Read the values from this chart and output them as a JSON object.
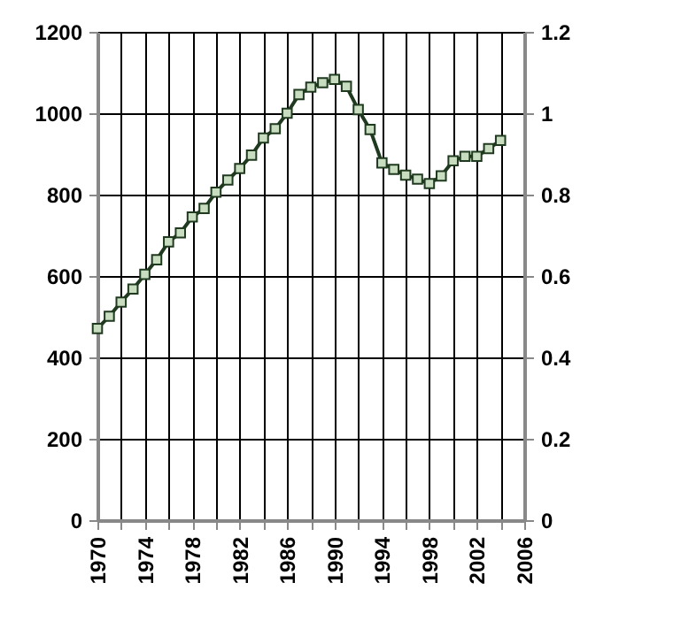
{
  "chart_data": {
    "type": "line",
    "x": [
      1970,
      1971,
      1972,
      1973,
      1974,
      1975,
      1976,
      1977,
      1978,
      1979,
      1980,
      1981,
      1982,
      1983,
      1984,
      1985,
      1986,
      1987,
      1988,
      1989,
      1990,
      1991,
      1992,
      1993,
      1994,
      1995,
      1996,
      1997,
      1998,
      1999,
      2000,
      2001,
      2002,
      2003,
      2004
    ],
    "series": [
      {
        "color": "#1f3a1f",
        "values": [
          471,
          501,
          536,
          568,
          604,
          640,
          684,
          706,
          745,
          766,
          806,
          836,
          864,
          897,
          939,
          962,
          1000,
          1046,
          1064,
          1075,
          1083,
          1066,
          1009,
          960,
          878,
          862,
          848,
          838,
          827,
          846,
          883,
          894,
          894,
          913,
          933
        ]
      }
    ],
    "xlim": [
      1970,
      2006
    ],
    "xticks": [
      1970,
      {
        "value": 1972,
        "label": null
      },
      1974,
      {
        "value": 1976,
        "label": null
      },
      1978,
      {
        "value": 1980,
        "label": null
      },
      1982,
      {
        "value": 1984,
        "label": null
      },
      1986,
      {
        "value": 1988,
        "label": null
      },
      1990,
      {
        "value": 1992,
        "label": null
      },
      1994,
      {
        "value": 1996,
        "label": null
      },
      1998,
      {
        "value": 2000,
        "label": null
      },
      2002,
      {
        "value": 2004,
        "label": null
      },
      2006
    ],
    "ylim": [
      0,
      1200
    ],
    "yticks": [
      0,
      200,
      400,
      600,
      800,
      1000,
      1200
    ],
    "y2lim": [
      0,
      1.2
    ],
    "y2ticks": [
      0,
      0.2,
      0.4,
      0.6,
      0.8,
      1,
      1.2
    ],
    "grid": true,
    "marker": "square",
    "line_style": "solid"
  }
}
